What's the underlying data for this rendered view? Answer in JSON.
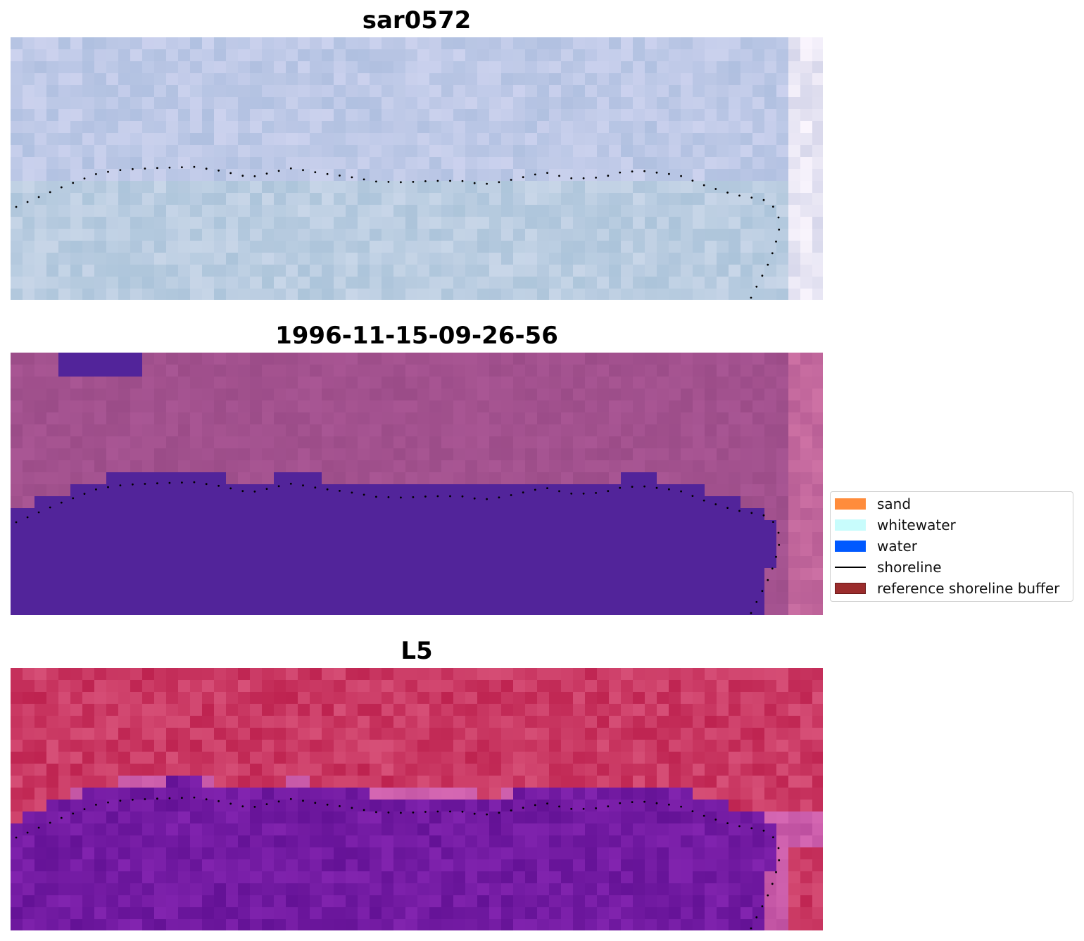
{
  "panels": [
    {
      "title": "sar0572",
      "style": "rgb"
    },
    {
      "title": "1996-11-15-09-26-56",
      "style": "classified"
    },
    {
      "title": "L5",
      "style": "index"
    }
  ],
  "legend": {
    "items": [
      {
        "label": "sand",
        "color": "#ff8c3c",
        "kind": "patch"
      },
      {
        "label": "whitewater",
        "color": "#c8fcfc",
        "kind": "patch"
      },
      {
        "label": "water",
        "color": "#0059ff",
        "kind": "patch"
      },
      {
        "label": "shoreline",
        "color": "#000000",
        "kind": "line"
      },
      {
        "label": "reference shoreline buffer",
        "color": "#9b2c2c",
        "kind": "patch-edged"
      }
    ]
  },
  "colors": {
    "classified_water": "#52249a",
    "classified_land": "#9d4f8a",
    "shoreline": "#000000"
  }
}
